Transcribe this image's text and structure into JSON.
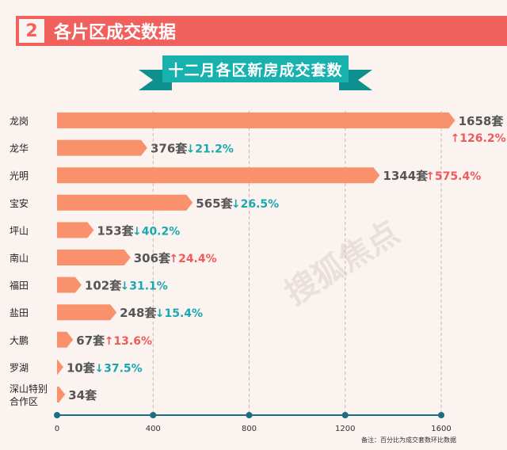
{
  "section": {
    "number": "2",
    "title": "各片区成交数据"
  },
  "banner": {
    "title": "十二月各区新房成交套数"
  },
  "footnote": "备注：百分比为成交套数环比数据",
  "watermark": "搜狐焦点",
  "colors": {
    "bar": "#f9926c",
    "up": "#ef5a5a",
    "down": "#1aa8b0",
    "axis": "#1a6f80",
    "grid": "#c9b7b3"
  },
  "chart_data": {
    "type": "bar",
    "orientation": "horizontal",
    "categories": [
      "龙岗",
      "龙华",
      "光明",
      "宝安",
      "坪山",
      "南山",
      "福田",
      "盐田",
      "大鹏",
      "罗湖",
      "深山特别合作区"
    ],
    "category_lines": [
      [
        "龙岗"
      ],
      [
        "龙华"
      ],
      [
        "光明"
      ],
      [
        "宝安"
      ],
      [
        "坪山"
      ],
      [
        "南山"
      ],
      [
        "福田"
      ],
      [
        "盐田"
      ],
      [
        "大鹏"
      ],
      [
        "罗湖"
      ],
      [
        "深山特别",
        "合作区"
      ]
    ],
    "values": [
      1658,
      376,
      1344,
      565,
      153,
      306,
      102,
      248,
      67,
      10,
      34
    ],
    "unit": "套",
    "changes": [
      {
        "dir": "up",
        "text": "126.2%"
      },
      {
        "dir": "down",
        "text": "21.2%"
      },
      {
        "dir": "up",
        "text": "575.4%"
      },
      {
        "dir": "down",
        "text": "26.5%"
      },
      {
        "dir": "down",
        "text": "40.2%"
      },
      {
        "dir": "up",
        "text": "24.4%"
      },
      {
        "dir": "down",
        "text": "31.1%"
      },
      {
        "dir": "down",
        "text": "15.4%"
      },
      {
        "dir": "up",
        "text": "13.6%"
      },
      {
        "dir": "down",
        "text": "37.5%"
      },
      null
    ],
    "xticks": [
      0,
      400,
      800,
      1200,
      1600
    ],
    "xlim": [
      0,
      1600
    ],
    "grid": "vertical dashed",
    "legend": "none"
  }
}
